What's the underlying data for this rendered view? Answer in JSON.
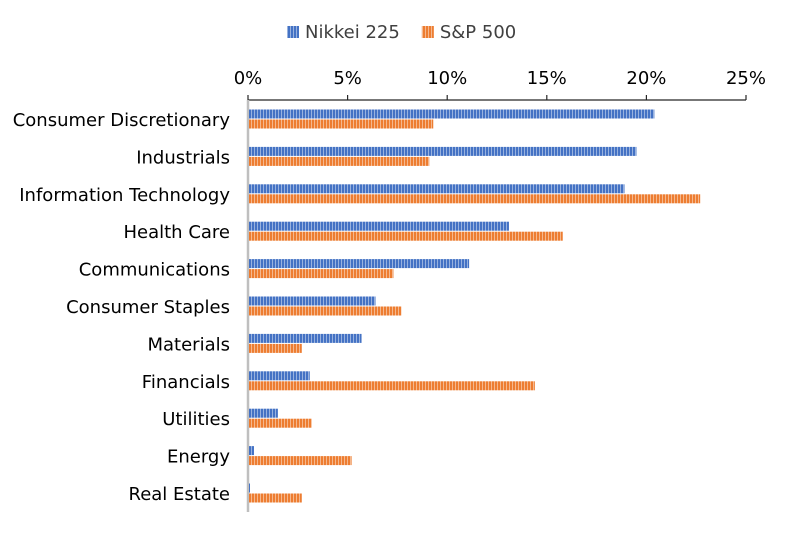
{
  "chart_data": {
    "type": "bar",
    "orientation": "horizontal",
    "categories": [
      "Consumer Discretionary",
      "Industrials",
      "Information Technology",
      "Health Care",
      "Communications",
      "Consumer Staples",
      "Materials",
      "Financials",
      "Utilities",
      "Energy",
      "Real Estate"
    ],
    "series": [
      {
        "name": "Nikkei 225",
        "color": "#4472C4",
        "values": [
          20.4,
          19.5,
          18.9,
          13.1,
          11.1,
          6.4,
          5.7,
          3.1,
          1.5,
          0.3,
          0.1
        ]
      },
      {
        "name": "S&P 500",
        "color": "#ED7D31",
        "values": [
          9.3,
          9.1,
          22.7,
          15.8,
          7.3,
          7.7,
          2.7,
          14.4,
          3.2,
          5.2,
          2.7
        ]
      }
    ],
    "xlim": [
      0,
      25
    ],
    "xticks": [
      0,
      5,
      10,
      15,
      20,
      25
    ],
    "tick_labels": [
      "0%",
      "5%",
      "10%",
      "15%",
      "20%",
      "25%"
    ],
    "axis_position": "top",
    "grid": false,
    "legend_position": "top",
    "bar_pattern": "vertical-stripes"
  }
}
